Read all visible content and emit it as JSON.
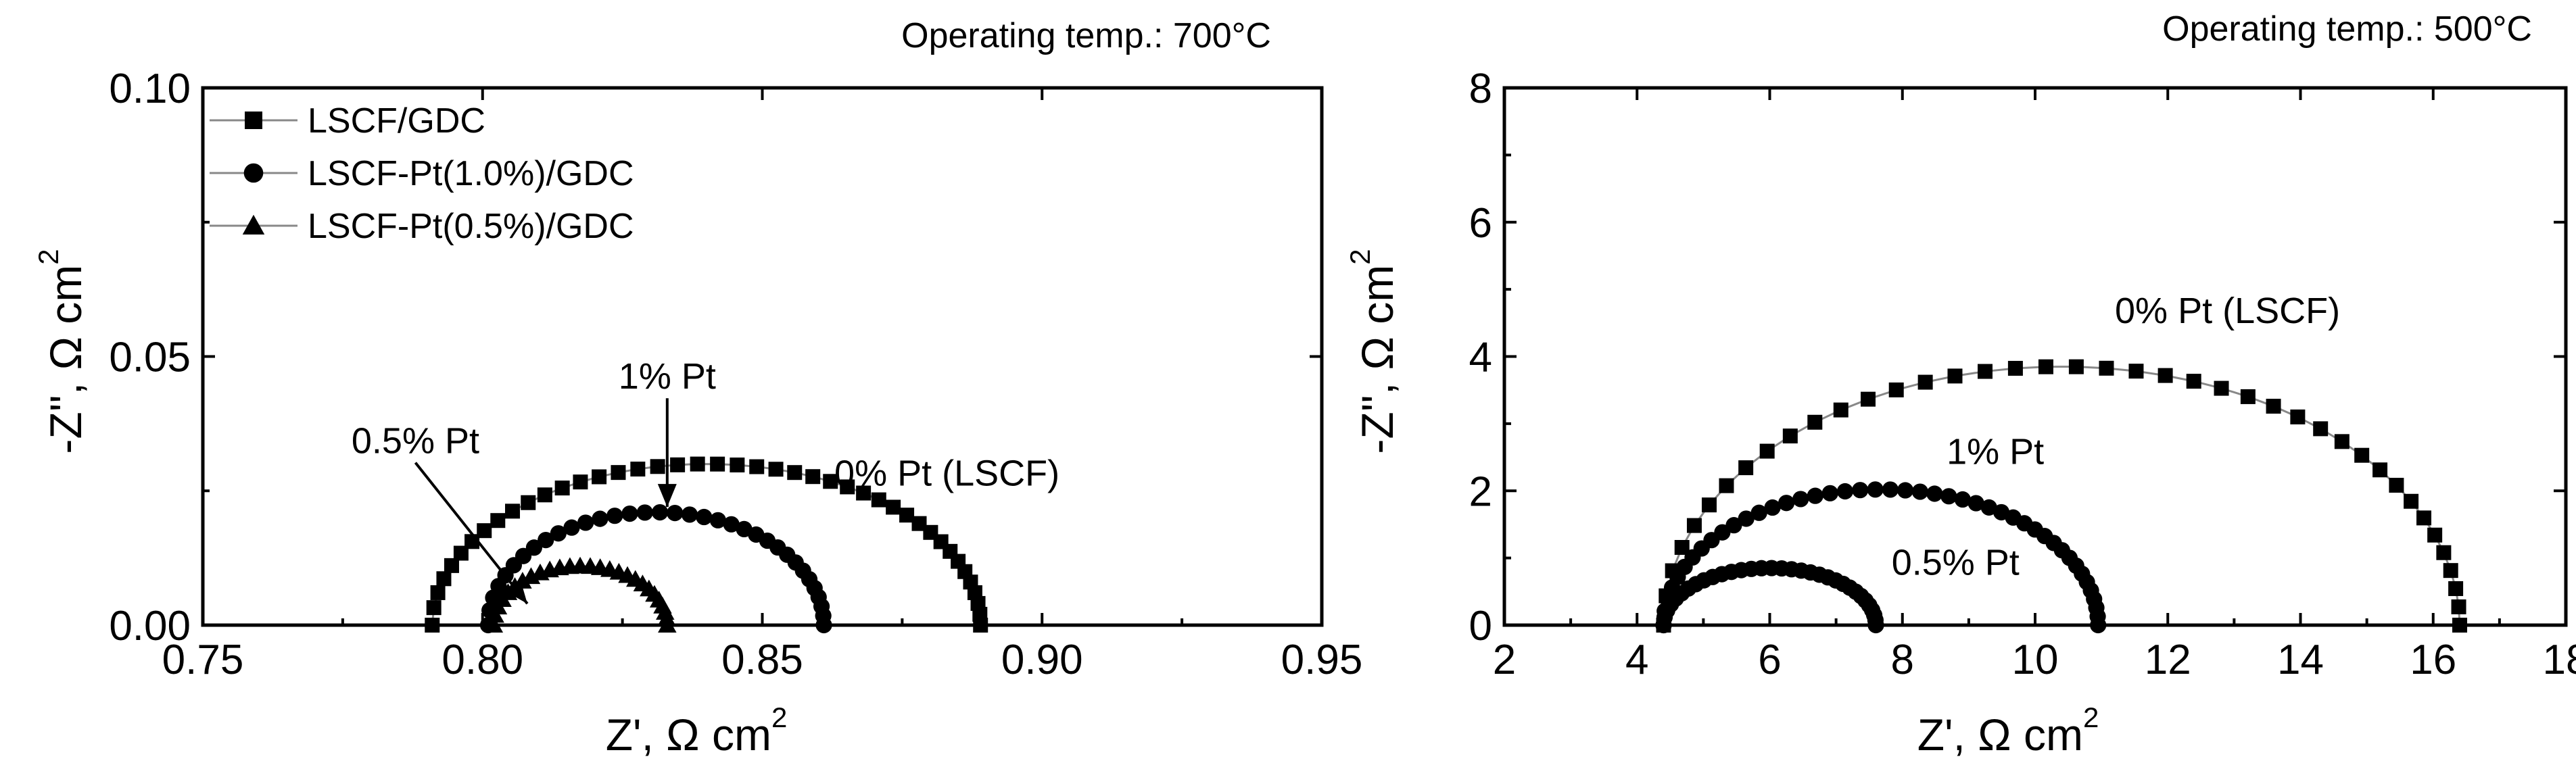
{
  "chart_data": [
    {
      "type": "scatter",
      "temp_label": "Operating temp.: 700°C",
      "xlabel": "Z', Ω cm",
      "xlabel_sup": "2",
      "ylabel": "-Z'', Ω cm",
      "ylabel_sup": "2",
      "xlim": [
        0.75,
        0.95
      ],
      "ylim": [
        0.0,
        0.1
      ],
      "xticks": [
        "0.75",
        "0.80",
        "0.85",
        "0.90",
        "0.95"
      ],
      "yticks": [
        "0.00",
        "0.05",
        "0.10"
      ],
      "legend": "top-left",
      "series": [
        {
          "name": "LSCF/GDC",
          "marker": "square",
          "x_start": 0.791,
          "x_end": 0.889,
          "peak": 0.03,
          "points": 42
        },
        {
          "name": "LSCF-Pt(1.0%)/GDC",
          "marker": "circle",
          "x_start": 0.801,
          "x_end": 0.861,
          "peak": 0.021,
          "points": 34
        },
        {
          "name": "LSCF-Pt(0.5%)/GDC",
          "marker": "triangle",
          "x_start": 0.802,
          "x_end": 0.833,
          "peak": 0.011,
          "points": 26
        }
      ],
      "annotations": [
        {
          "text": "1% Pt",
          "x": 0.833,
          "y": 0.044,
          "arrow_to": [
            0.833,
            0.022
          ]
        },
        {
          "text": "0.5% Pt",
          "x": 0.788,
          "y": 0.032,
          "arrow_to": [
            0.808,
            0.004
          ]
        },
        {
          "text": "0% Pt (LSCF)",
          "x": 0.883,
          "y": 0.026
        }
      ]
    },
    {
      "type": "scatter",
      "temp_label": "Operating temp.: 500°C",
      "xlabel": "Z', Ω cm",
      "xlabel_sup": "2",
      "ylabel": "-Z'', Ω cm",
      "ylabel_sup": "2",
      "xlim": [
        2,
        18
      ],
      "ylim": [
        0,
        8
      ],
      "xticks": [
        "2",
        "4",
        "6",
        "8",
        "10",
        "12",
        "14",
        "16",
        "18"
      ],
      "yticks": [
        "0",
        "2",
        "4",
        "6",
        "8"
      ],
      "series": [
        {
          "name": "0% Pt (LSCF)",
          "marker": "square",
          "x_start": 4.4,
          "x_end": 16.4,
          "peak": 3.85,
          "points": 40
        },
        {
          "name": "1% Pt",
          "marker": "circle",
          "x_start": 4.4,
          "x_end": 10.95,
          "peak": 2.02,
          "points": 44
        },
        {
          "name": "0.5% Pt",
          "marker": "circle",
          "x_start": 4.4,
          "x_end": 7.6,
          "peak": 0.85,
          "points": 32
        }
      ],
      "annotations": [
        {
          "text": "0% Pt (LSCF)",
          "x": 12.9,
          "y": 4.5
        },
        {
          "text": "1% Pt",
          "x": 9.4,
          "y": 2.4
        },
        {
          "text": "0.5% Pt",
          "x": 8.8,
          "y": 0.75
        }
      ]
    }
  ]
}
